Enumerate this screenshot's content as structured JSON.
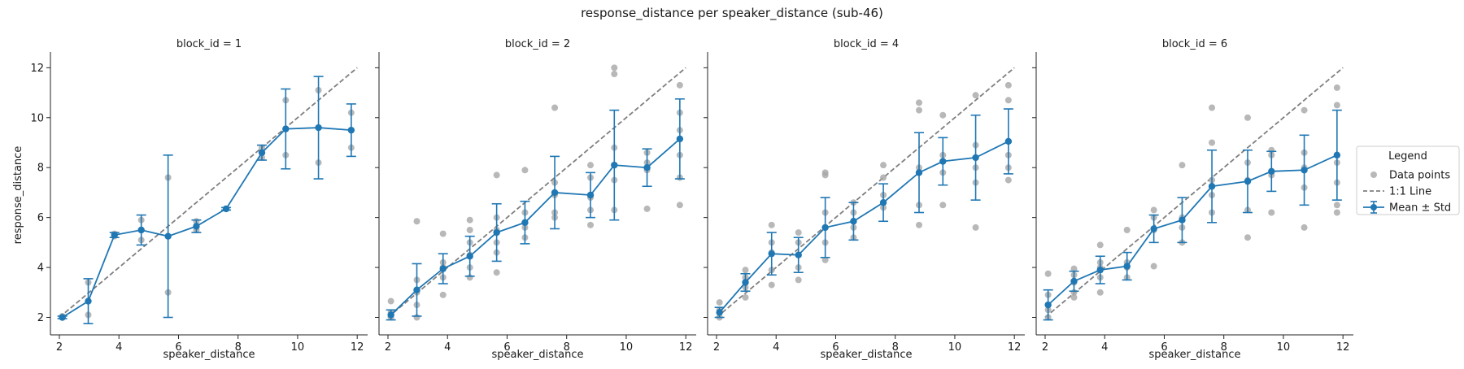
{
  "chart_data": {
    "type": "scatter",
    "title": "response_distance per speaker_distance (sub-46)",
    "xlabel": "speaker_distance",
    "ylabel": "response_distance",
    "xlim": [
      1.7,
      12.35
    ],
    "ylim": [
      1.3,
      12.5
    ],
    "xticks": [
      2,
      4,
      6,
      8,
      10,
      12
    ],
    "yticks": [
      2,
      4,
      6,
      8,
      10,
      12
    ],
    "shared_y": true,
    "legend": {
      "title": "Legend",
      "placement": "right",
      "entries": [
        {
          "label": "Data points",
          "kind": "points"
        },
        {
          "label": "1:1 Line",
          "kind": "dashed"
        },
        {
          "label": "Mean ± Std",
          "kind": "errorbar"
        }
      ]
    },
    "colors": {
      "points": "#a6a6a6",
      "mean": "#1f77b4",
      "identity": "#7f7f7f"
    },
    "panels": [
      {
        "title": "block_id = 1",
        "mean": {
          "x": [
            2.1,
            2.97,
            3.85,
            4.75,
            5.65,
            6.6,
            7.6,
            8.8,
            9.6,
            10.7,
            11.8
          ],
          "y": [
            2.0,
            2.65,
            5.3,
            5.5,
            5.25,
            5.65,
            6.35,
            8.6,
            9.55,
            9.6,
            9.5
          ],
          "std": [
            0.05,
            0.9,
            0.1,
            0.6,
            3.25,
            0.25,
            0.05,
            0.3,
            1.6,
            2.05,
            1.05
          ]
        },
        "points": {
          "x": [
            2.1,
            2.1,
            2.97,
            2.97,
            3.85,
            3.85,
            4.75,
            4.75,
            4.75,
            5.65,
            5.65,
            6.6,
            6.6,
            7.6,
            8.8,
            8.8,
            9.6,
            9.6,
            10.7,
            10.7,
            11.8,
            11.8
          ],
          "y": [
            2.0,
            2.05,
            2.1,
            3.4,
            5.25,
            5.35,
            5.1,
            5.5,
            5.9,
            3.0,
            7.6,
            5.5,
            5.85,
            6.35,
            8.4,
            8.8,
            8.5,
            10.7,
            8.2,
            11.1,
            8.8,
            10.2
          ]
        }
      },
      {
        "title": "block_id = 2",
        "mean": {
          "x": [
            2.1,
            2.97,
            3.85,
            4.75,
            5.65,
            6.6,
            7.6,
            8.8,
            9.6,
            10.7,
            11.8
          ],
          "y": [
            2.1,
            3.1,
            3.95,
            4.45,
            5.4,
            5.8,
            7.0,
            6.9,
            8.1,
            8.0,
            9.15
          ],
          "std": [
            0.2,
            1.05,
            0.6,
            0.8,
            1.15,
            0.85,
            1.45,
            0.9,
            2.2,
            0.75,
            1.6
          ]
        },
        "points": {
          "x": [
            2.1,
            2.1,
            2.1,
            2.97,
            2.97,
            2.97,
            2.97,
            2.97,
            3.85,
            3.85,
            3.85,
            3.85,
            3.85,
            4.75,
            4.75,
            4.75,
            4.75,
            4.75,
            4.75,
            5.65,
            5.65,
            5.65,
            5.65,
            5.65,
            5.65,
            6.6,
            6.6,
            6.6,
            6.6,
            7.6,
            7.6,
            7.6,
            7.6,
            7.6,
            8.8,
            8.8,
            8.8,
            8.8,
            8.8,
            9.6,
            9.6,
            9.6,
            9.6,
            9.6,
            10.7,
            10.7,
            10.7,
            10.7,
            11.8,
            11.8,
            11.8,
            11.8,
            11.8,
            11.8
          ],
          "y": [
            2.0,
            2.2,
            2.65,
            2.0,
            2.5,
            3.0,
            3.5,
            5.85,
            2.9,
            3.6,
            4.0,
            4.2,
            5.35,
            3.6,
            4.0,
            4.5,
            5.0,
            5.5,
            5.9,
            3.8,
            4.6,
            5.0,
            5.5,
            6.0,
            7.7,
            5.2,
            5.6,
            6.2,
            7.9,
            6.0,
            6.2,
            6.9,
            7.4,
            10.4,
            5.7,
            6.3,
            6.8,
            7.6,
            8.1,
            6.3,
            7.5,
            8.8,
            11.75,
            12.0,
            6.35,
            7.9,
            8.2,
            8.6,
            6.5,
            7.6,
            8.5,
            9.5,
            10.2,
            11.3
          ]
        }
      },
      {
        "title": "block_id = 4",
        "mean": {
          "x": [
            2.1,
            2.97,
            3.85,
            4.75,
            5.65,
            6.6,
            7.6,
            8.8,
            9.6,
            10.7,
            11.8
          ],
          "y": [
            2.2,
            3.4,
            4.55,
            4.5,
            5.6,
            5.85,
            6.6,
            7.8,
            8.25,
            8.4,
            9.05
          ],
          "std": [
            0.2,
            0.35,
            0.85,
            0.7,
            1.2,
            0.75,
            0.75,
            1.6,
            0.95,
            1.7,
            1.3
          ]
        },
        "points": {
          "x": [
            2.1,
            2.1,
            2.1,
            2.97,
            2.97,
            2.97,
            2.97,
            3.85,
            3.85,
            3.85,
            3.85,
            3.85,
            4.75,
            4.75,
            4.75,
            4.75,
            4.75,
            5.65,
            5.65,
            5.65,
            5.65,
            5.65,
            5.65,
            6.6,
            6.6,
            6.6,
            6.6,
            7.6,
            7.6,
            7.6,
            7.6,
            8.8,
            8.8,
            8.8,
            8.8,
            8.8,
            9.6,
            9.6,
            9.6,
            9.6,
            10.7,
            10.7,
            10.7,
            10.7,
            10.7,
            11.8,
            11.8,
            11.8,
            11.8,
            11.8
          ],
          "y": [
            2.0,
            2.3,
            2.6,
            2.8,
            3.2,
            3.6,
            3.9,
            3.3,
            3.9,
            4.6,
            5.0,
            5.7,
            3.5,
            4.0,
            4.5,
            5.0,
            5.4,
            4.3,
            5.0,
            5.6,
            6.2,
            7.7,
            7.8,
            5.2,
            5.6,
            6.2,
            6.6,
            6.4,
            6.9,
            7.6,
            8.1,
            5.7,
            6.5,
            8.0,
            10.3,
            10.6,
            6.5,
            7.8,
            8.5,
            10.1,
            5.6,
            7.4,
            8.0,
            8.9,
            10.9,
            7.5,
            8.0,
            8.5,
            10.7,
            11.3
          ]
        }
      },
      {
        "title": "block_id = 6",
        "mean": {
          "x": [
            2.1,
            2.97,
            3.85,
            4.75,
            5.65,
            6.6,
            7.6,
            8.8,
            9.6,
            10.7,
            11.8
          ],
          "y": [
            2.5,
            3.45,
            3.9,
            4.05,
            5.55,
            5.9,
            7.25,
            7.45,
            7.85,
            7.9,
            8.5
          ],
          "std": [
            0.6,
            0.4,
            0.55,
            0.55,
            0.55,
            0.9,
            1.45,
            1.25,
            0.8,
            1.4,
            1.8
          ]
        },
        "points": {
          "x": [
            2.1,
            2.1,
            2.1,
            2.1,
            2.97,
            2.97,
            2.97,
            2.97,
            2.97,
            3.85,
            3.85,
            3.85,
            3.85,
            3.85,
            4.75,
            4.75,
            4.75,
            4.75,
            5.65,
            5.65,
            5.65,
            5.65,
            6.6,
            6.6,
            6.6,
            6.6,
            7.6,
            7.6,
            7.6,
            7.6,
            7.6,
            8.8,
            8.8,
            8.8,
            8.8,
            8.8,
            9.6,
            9.6,
            9.6,
            9.6,
            10.7,
            10.7,
            10.7,
            10.7,
            10.7,
            11.8,
            11.8,
            11.8,
            11.8,
            11.8,
            11.8
          ],
          "y": [
            2.0,
            2.3,
            2.9,
            3.75,
            2.8,
            3.0,
            3.4,
            3.7,
            3.95,
            3.0,
            3.6,
            4.0,
            4.2,
            4.9,
            3.6,
            4.0,
            4.2,
            5.5,
            4.05,
            5.5,
            6.0,
            6.3,
            5.0,
            5.6,
            6.0,
            8.1,
            6.2,
            6.9,
            7.5,
            9.0,
            10.4,
            5.2,
            6.3,
            7.5,
            8.2,
            10.0,
            6.2,
            7.7,
            8.5,
            8.7,
            5.6,
            7.2,
            8.0,
            8.6,
            10.3,
            6.2,
            6.5,
            7.4,
            8.2,
            10.5,
            11.2
          ]
        }
      }
    ]
  }
}
